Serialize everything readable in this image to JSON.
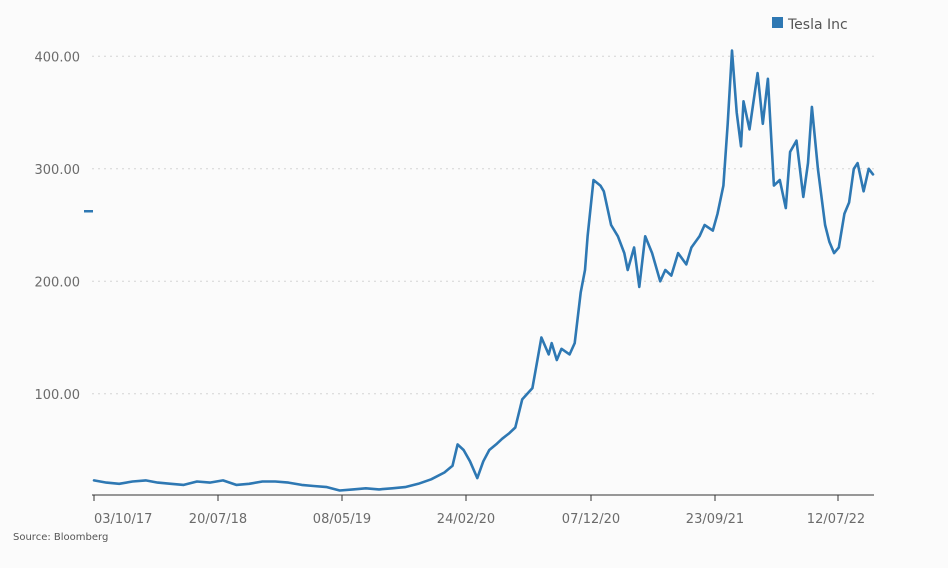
{
  "chart_data": {
    "type": "line",
    "title": "",
    "xlabel": "",
    "ylabel": "",
    "ylim": [
      10,
      420
    ],
    "yticks": [
      100,
      200,
      300,
      400
    ],
    "ytick_labels": [
      "100.00",
      "200.00",
      "300.00",
      "400.00"
    ],
    "x_tick_labels": [
      "03/10/17",
      "20/07/18",
      "08/05/19",
      "24/02/20",
      "07/12/20",
      "23/09/21",
      "12/07/22"
    ],
    "grid": "horizontal dotted",
    "legend": "top-right",
    "source": "Source: Bloomberg",
    "series": [
      {
        "name": "Tesla Inc",
        "color": "#2e78b3",
        "x": [
          "2017-10-03",
          "2017-11-01",
          "2017-12-01",
          "2018-01-01",
          "2018-02-01",
          "2018-03-01",
          "2018-04-01",
          "2018-05-01",
          "2018-06-01",
          "2018-07-01",
          "2018-08-01",
          "2018-09-01",
          "2018-10-01",
          "2018-11-01",
          "2018-12-01",
          "2019-01-01",
          "2019-02-01",
          "2019-03-01",
          "2019-04-01",
          "2019-05-01",
          "2019-06-01",
          "2019-07-01",
          "2019-08-01",
          "2019-09-01",
          "2019-10-01",
          "2019-11-01",
          "2019-12-01",
          "2020-01-01",
          "2020-01-20",
          "2020-02-01",
          "2020-02-15",
          "2020-03-01",
          "2020-03-18",
          "2020-04-01",
          "2020-04-15",
          "2020-05-01",
          "2020-05-15",
          "2020-06-01",
          "2020-06-15",
          "2020-07-01",
          "2020-07-13",
          "2020-07-25",
          "2020-08-01",
          "2020-08-15",
          "2020-09-01",
          "2020-09-08",
          "2020-09-20",
          "2020-10-01",
          "2020-10-20",
          "2020-11-01",
          "2020-11-15",
          "2020-11-25",
          "2020-12-01",
          "2020-12-15",
          "2020-12-31",
          "2021-01-08",
          "2021-01-25",
          "2021-02-10",
          "2021-02-25",
          "2021-03-05",
          "2021-03-20",
          "2021-04-01",
          "2021-04-15",
          "2021-05-01",
          "2021-05-20",
          "2021-06-01",
          "2021-06-15",
          "2021-07-01",
          "2021-07-20",
          "2021-08-01",
          "2021-08-20",
          "2021-09-01",
          "2021-09-20",
          "2021-10-01",
          "2021-10-15",
          "2021-10-25",
          "2021-11-04",
          "2021-11-15",
          "2021-11-25",
          "2021-12-01",
          "2021-12-15",
          "2022-01-03",
          "2022-01-15",
          "2022-01-27",
          "2022-02-10",
          "2022-02-24",
          "2022-03-10",
          "2022-03-20",
          "2022-04-04",
          "2022-04-20",
          "2022-05-01",
          "2022-05-10",
          "2022-05-24",
          "2022-06-10",
          "2022-06-20",
          "2022-07-01",
          "2022-07-12",
          "2022-07-25",
          "2022-08-05",
          "2022-08-16",
          "2022-08-25",
          "2022-09-08",
          "2022-09-20",
          "2022-09-30"
        ],
        "values": [
          23,
          21,
          20,
          22,
          23,
          21,
          20,
          19,
          22,
          21,
          23,
          19,
          20,
          22,
          22,
          21,
          19,
          18,
          17,
          14,
          15,
          16,
          15,
          16,
          17,
          20,
          24,
          30,
          36,
          55,
          50,
          40,
          25,
          40,
          50,
          55,
          60,
          65,
          70,
          95,
          100,
          105,
          120,
          150,
          135,
          145,
          130,
          140,
          135,
          145,
          190,
          210,
          240,
          290,
          285,
          280,
          250,
          240,
          225,
          210,
          230,
          195,
          240,
          225,
          200,
          210,
          205,
          225,
          215,
          230,
          240,
          250,
          245,
          260,
          285,
          340,
          405,
          350,
          320,
          360,
          335,
          385,
          340,
          380,
          285,
          290,
          265,
          315,
          325,
          275,
          305,
          355,
          300,
          250,
          235,
          225,
          230,
          260,
          270,
          300,
          305,
          280,
          300,
          295
        ]
      }
    ]
  }
}
